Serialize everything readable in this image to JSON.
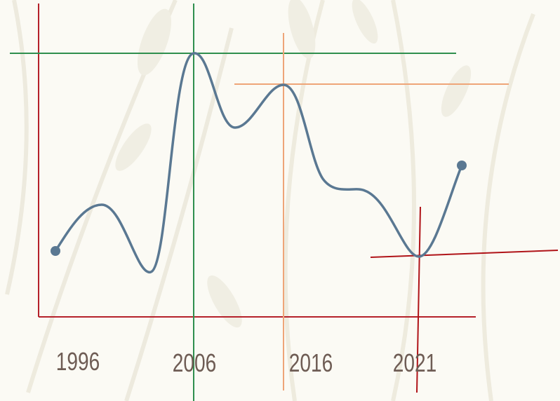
{
  "labels": [
    "1996",
    "2006",
    "2016",
    "2021"
  ]
}
